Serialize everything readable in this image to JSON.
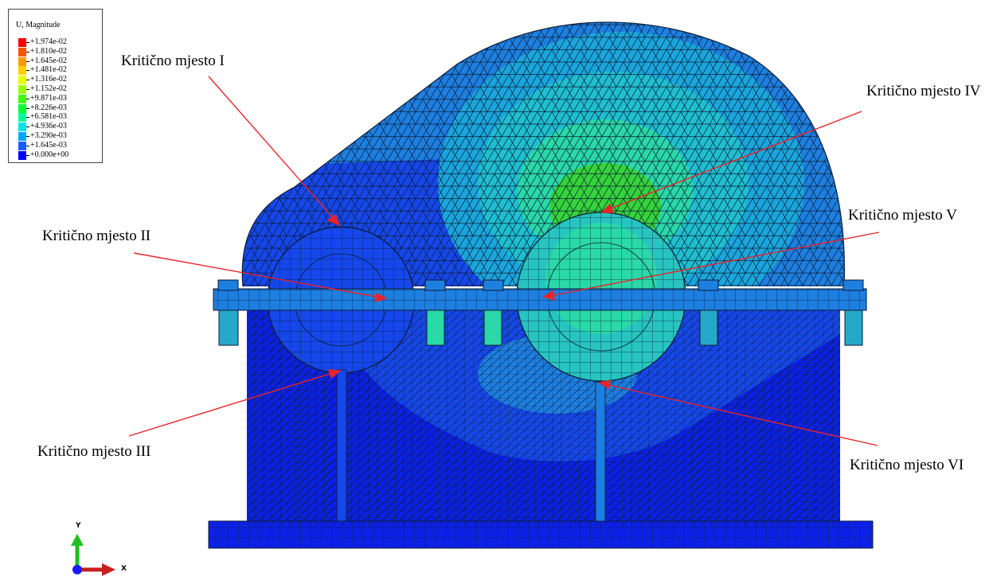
{
  "legend": {
    "title": "U, Magnitude",
    "entries": [
      {
        "label": "+1.974e-02",
        "color": "#ff0000"
      },
      {
        "label": "+1.810e-02",
        "color": "#ff5500"
      },
      {
        "label": "+1.645e-02",
        "color": "#ff9900"
      },
      {
        "label": "+1.481e-02",
        "color": "#ffd000"
      },
      {
        "label": "+1.316e-02",
        "color": "#e8ff00"
      },
      {
        "label": "+1.152e-02",
        "color": "#9cff00"
      },
      {
        "label": "+9.871e-03",
        "color": "#3cff00"
      },
      {
        "label": "+8.226e-03",
        "color": "#00ff33"
      },
      {
        "label": "+6.581e-03",
        "color": "#00ff99"
      },
      {
        "label": "+4.936e-03",
        "color": "#00e5e0"
      },
      {
        "label": "+3.290e-03",
        "color": "#00a8ff"
      },
      {
        "label": "+1.645e-03",
        "color": "#1a5cff"
      },
      {
        "label": "+0.000e+00",
        "color": "#0000ff"
      }
    ]
  },
  "callouts": [
    {
      "id": "I",
      "text": "Kritično mjesto I"
    },
    {
      "id": "II",
      "text": "Kritično mjesto II"
    },
    {
      "id": "III",
      "text": "Kritično mjesto III"
    },
    {
      "id": "IV",
      "text": "Kritično mjesto IV"
    },
    {
      "id": "V",
      "text": "Kritično mjesto V"
    },
    {
      "id": "VI",
      "text": "Kritično mjesto VI"
    }
  ],
  "triad": {
    "y_label": "Y",
    "x_label": "X"
  },
  "colors": {
    "mesh_line": "#0d1a33",
    "arrow": "#e8232a",
    "base_blue": "#0b22e6",
    "mid_blue": "#1547ea",
    "light_blue": "#1d7fe0",
    "cyan": "#1fbfd0",
    "green_cyan": "#2ad8a8",
    "green": "#35d43a"
  }
}
